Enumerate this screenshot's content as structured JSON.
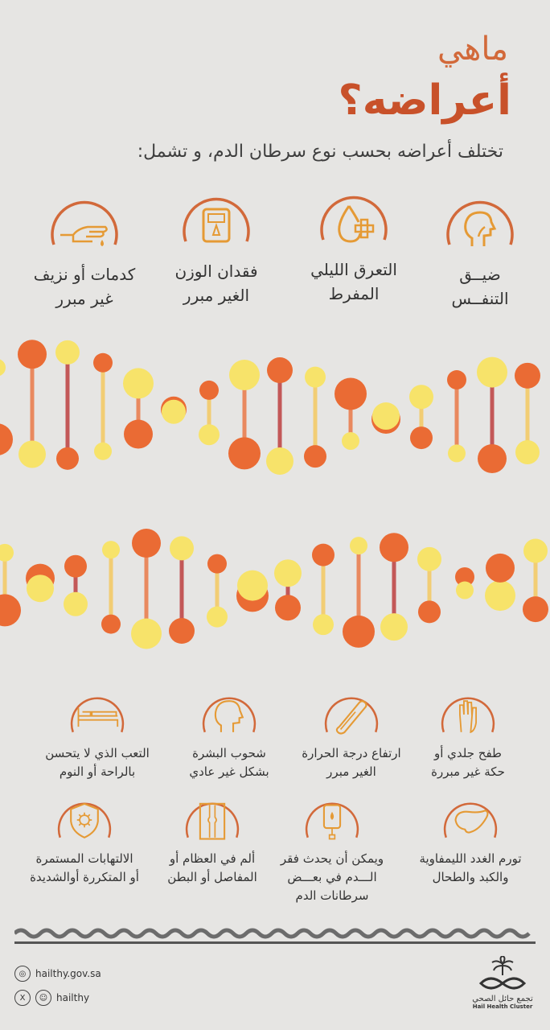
{
  "header": {
    "title_line1": "ماهي",
    "title_line2": "أعراضه؟",
    "subtitle": "تختلف أعراضه بحسب نوع سرطان الدم، و تشمل:"
  },
  "top_symptoms": [
    {
      "label_line1": "ضيــق",
      "label_line2": "التنفــس",
      "icon": "head-breathing-icon"
    },
    {
      "label_line1": "التعرق الليلي",
      "label_line2": "المفرط",
      "icon": "drop-plus-icon"
    },
    {
      "label_line1": "فقدان الوزن",
      "label_line2": "الغير مبرر",
      "icon": "scale-icon"
    },
    {
      "label_line1": "كدمات أو نزيف",
      "label_line2": "غير مبرر",
      "icon": "hand-bleeding-icon"
    }
  ],
  "mid_symptoms": [
    {
      "label_line1": "طفح جلدي أو",
      "label_line2": "حكة غير مبررة",
      "icon": "hand-rash-icon"
    },
    {
      "label_line1": "ارتفاع درجة الحرارة",
      "label_line2": "الغير مبرر",
      "icon": "thermometer-icon"
    },
    {
      "label_line1": "شحوب البشرة",
      "label_line2": "بشكل غير عادي",
      "icon": "pale-face-icon"
    },
    {
      "label_line1": "التعب الذي لا يتحسن",
      "label_line2": "بالراحة أو النوم",
      "icon": "bed-icon"
    }
  ],
  "bottom_symptoms": [
    {
      "label_line1": "تورم الغدد الليمفاوية",
      "label_line2": "والكبد والطحال",
      "label_line3": "",
      "icon": "liver-icon"
    },
    {
      "label_line1": "ويمكن أن يحدث فقر",
      "label_line2": "الـــدم في بعـــض",
      "label_line3": "سرطانات الدم",
      "icon": "iv-bag-icon"
    },
    {
      "label_line1": "ألم في العظام أو",
      "label_line2": "المفاصل أو البطن",
      "label_line3": "",
      "icon": "joint-xray-icon"
    },
    {
      "label_line1": "الالتهابات المستمرة",
      "label_line2": "أو المتكررة أوالشديدة",
      "label_line3": "",
      "icon": "shield-virus-icon"
    }
  ],
  "footer": {
    "website": "hailthy.gov.sa",
    "handle": "hailthy",
    "org_ar": "تجمع حائل الصحي",
    "org_en": "Hail Health Cluster"
  },
  "colors": {
    "accent": "#d2693a",
    "bg": "#e6e5e3",
    "dna": [
      "#f7e36a",
      "#f6c64f",
      "#f29b3f",
      "#ea6b34",
      "#d9432e",
      "#b82a2a"
    ]
  }
}
